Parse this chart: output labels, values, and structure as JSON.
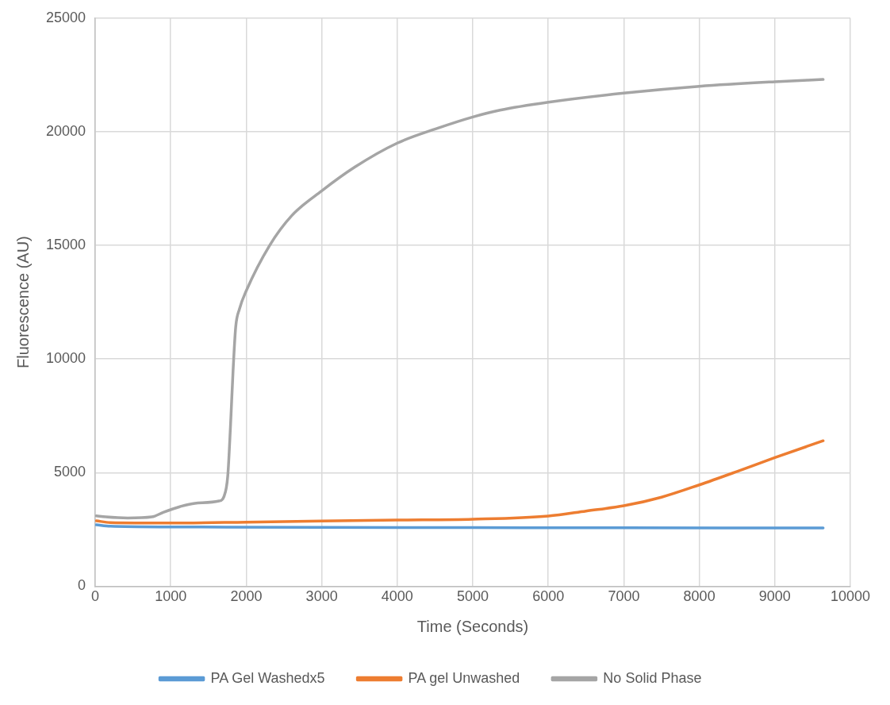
{
  "chart_data": {
    "type": "line",
    "xlabel": "Time (Seconds)",
    "ylabel": "Fluorescence (AU)",
    "xlim": [
      0,
      10000
    ],
    "xticks": [
      0,
      1000,
      2000,
      3000,
      4000,
      5000,
      6000,
      7000,
      8000,
      9000,
      10000
    ],
    "ylim": [
      0,
      25000
    ],
    "yticks": [
      0,
      5000,
      10000,
      15000,
      20000,
      25000
    ],
    "grid": true,
    "legend": "bottom",
    "marker": "none",
    "line_style": "solid",
    "series": [
      {
        "name": "PA Gel Washedx5",
        "color": "#5b9bd5",
        "x": [
          15,
          200,
          1000,
          3000,
          5000,
          7000,
          9640
        ],
        "values": [
          2700,
          2640,
          2610,
          2590,
          2580,
          2570,
          2560
        ]
      },
      {
        "name": "PA gel Unwashed",
        "color": "#ed7d31",
        "x": [
          15,
          200,
          1000,
          2000,
          3000,
          4000,
          5000,
          6000,
          6500,
          7000,
          7500,
          8000,
          8500,
          9000,
          9640
        ],
        "values": [
          2880,
          2800,
          2780,
          2820,
          2870,
          2910,
          2950,
          3090,
          3310,
          3540,
          3920,
          4460,
          5050,
          5660,
          6400
        ]
      },
      {
        "name": "No Solid Phase",
        "color": "#a5a5a5",
        "x": [
          15,
          140,
          430,
          750,
          900,
          1120,
          1320,
          1640,
          1705,
          1755,
          1790,
          1825,
          1860,
          1910,
          2000,
          2310,
          2600,
          3000,
          3440,
          4000,
          4530,
          5000,
          5360,
          6000,
          7000,
          8000,
          9000,
          9640
        ],
        "values": [
          3100,
          3050,
          3000,
          3050,
          3250,
          3500,
          3650,
          3750,
          3950,
          4850,
          6950,
          9450,
          11400,
          12200,
          13000,
          15000,
          16300,
          17400,
          18450,
          19500,
          20150,
          20650,
          20950,
          21300,
          21700,
          22000,
          22200,
          22300
        ]
      }
    ]
  }
}
